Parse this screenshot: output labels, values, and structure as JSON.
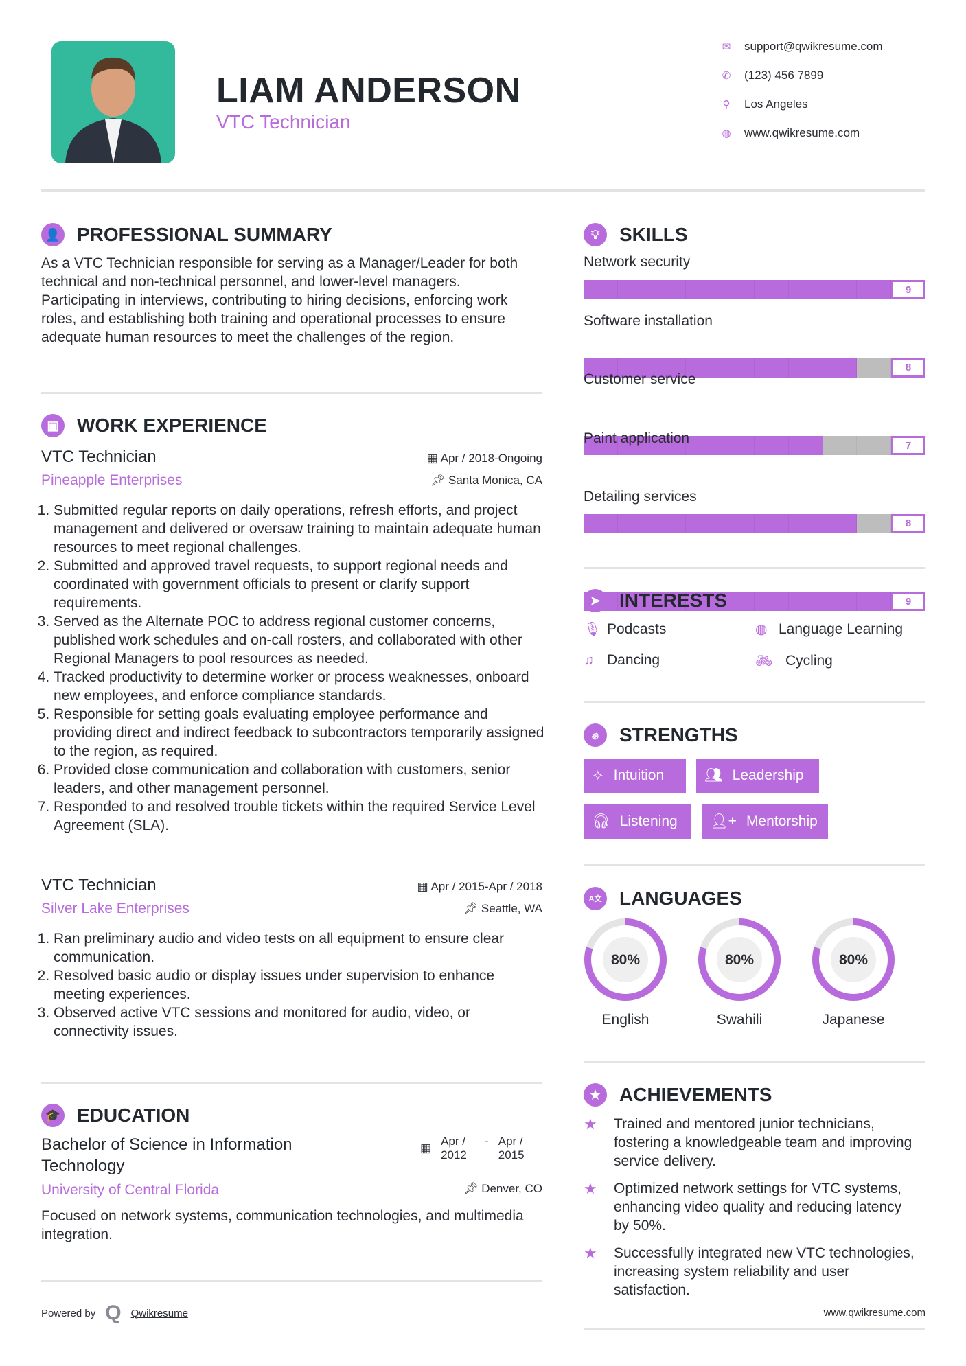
{
  "header": {
    "name": "LIAM ANDERSON",
    "title": "VTC Technician",
    "contacts": [
      {
        "icon": "envelope-icon",
        "text": "support@qwikresume.com"
      },
      {
        "icon": "phone-icon",
        "text": "(123) 456 7899"
      },
      {
        "icon": "map-pin-icon",
        "text": "Los Angeles"
      },
      {
        "icon": "globe-icon",
        "text": "www.qwikresume.com"
      }
    ]
  },
  "summary": {
    "heading": "PROFESSIONAL SUMMARY",
    "text": "As a VTC Technician responsible for serving as a Manager/Leader for both technical and non-technical personnel, and lower-level managers. Participating in interviews, contributing to hiring decisions, enforcing work roles, and establishing both training and operational processes to ensure adequate human resources to meet the challenges of the region."
  },
  "experience": {
    "heading": "WORK EXPERIENCE",
    "jobs": [
      {
        "title": "VTC Technician",
        "company": "Pineapple Enterprises",
        "date": "Apr / 2018-Ongoing",
        "location": "Santa Monica, CA",
        "items": [
          "Submitted regular reports on daily operations, refresh efforts, and project management and delivered or oversaw training to maintain adequate human resources to meet regional challenges.",
          "Submitted and approved travel requests, to support regional needs and coordinated with government officials to present or clarify support requirements.",
          "Served as the Alternate POC to address regional customer concerns, published work schedules and on-call rosters, and collaborated with other Regional Managers to pool resources as needed.",
          "Tracked productivity to determine worker or process weaknesses, onboard new employees, and enforce compliance standards.",
          "Responsible for setting goals evaluating employee performance and providing direct and indirect feedback to subcontractors temporarily assigned to the region, as required.",
          "Provided close communication and collaboration with customers, senior leaders, and other management personnel.",
          "Responded to and resolved trouble tickets within the required Service Level Agreement (SLA)."
        ]
      },
      {
        "title": "VTC Technician",
        "company": "Silver Lake Enterprises",
        "date": "Apr / 2015-Apr / 2018",
        "location": "Seattle, WA",
        "items": [
          "Ran preliminary audio and video tests on all equipment to ensure clear communication.",
          "Resolved basic audio or display issues under supervision to enhance meeting experiences.",
          "Observed active VTC sessions and monitored for audio, video, or connectivity issues."
        ]
      }
    ]
  },
  "education": {
    "heading": "EDUCATION",
    "degree": "Bachelor of Science in Information Technology",
    "school": "University of Central Florida",
    "date_start": "Apr / 2012",
    "date_sep": "-",
    "date_end": "Apr / 2015",
    "location": "Denver, CO",
    "text": "Focused on network systems, communication technologies, and multimedia integration."
  },
  "footer": {
    "powered_by": "Powered by",
    "brand": "Qwikresume",
    "url": "www.qwikresume.com"
  },
  "skills": {
    "heading": "SKILLS",
    "max": 10,
    "items": [
      {
        "name": "Network security",
        "level": 9
      },
      {
        "name": "Software installation",
        "level": 8
      },
      {
        "name": "Customer service",
        "level": 7
      },
      {
        "name": "Paint application",
        "level": 8
      },
      {
        "name": "Detailing services",
        "level": 9
      }
    ]
  },
  "interests": {
    "heading": "INTERESTS",
    "items": [
      {
        "icon": "microphone-icon",
        "label": "Podcasts"
      },
      {
        "icon": "globe-icon",
        "label": "Language Learning"
      },
      {
        "icon": "music-icon",
        "label": "Dancing"
      },
      {
        "icon": "bicycle-icon",
        "label": "Cycling"
      }
    ]
  },
  "strengths": {
    "heading": "STRENGTHS",
    "items": [
      {
        "icon": "magic-wand-icon",
        "label": "Intuition"
      },
      {
        "icon": "users-icon",
        "label": "Leadership"
      },
      {
        "icon": "headphones-icon",
        "label": "Listening"
      },
      {
        "icon": "user-plus-icon",
        "label": "Mentorship"
      }
    ]
  },
  "languages": {
    "heading": "LANGUAGES",
    "items": [
      {
        "name": "English",
        "percent": 80,
        "label": "80%"
      },
      {
        "name": "Swahili",
        "percent": 80,
        "label": "80%"
      },
      {
        "name": "Japanese",
        "percent": 80,
        "label": "80%"
      }
    ]
  },
  "achievements": {
    "heading": "ACHIEVEMENTS",
    "items": [
      "Trained and mentored junior technicians, fostering a knowledgeable team and improving service delivery.",
      "Optimized network settings for VTC systems, enhancing video quality and reducing latency by 50%.",
      "Successfully integrated new VTC technologies, increasing system reliability and user satisfaction."
    ]
  },
  "colors": {
    "accent": "#b86bdc",
    "bar_empty": "#bdbdbd",
    "photo_bg": "#33b99b",
    "text": "#23272e"
  }
}
